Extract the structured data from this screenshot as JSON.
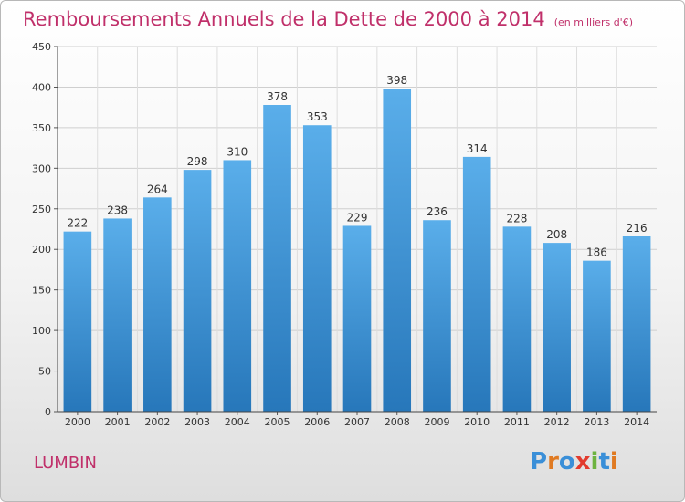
{
  "title": "Remboursements Annuels de la Dette de 2000 à 2014",
  "subtitle": "(en milliers d'€)",
  "commune": "LUMBIN",
  "logo": "Proxiti",
  "colors": {
    "title": "#c0306a",
    "bar_top": "#5aaeea",
    "bar_bottom": "#2777ba",
    "grid": "#cfcfcf"
  },
  "chart_data": {
    "type": "bar",
    "categories": [
      "2000",
      "2001",
      "2002",
      "2003",
      "2004",
      "2005",
      "2006",
      "2007",
      "2008",
      "2009",
      "2010",
      "2011",
      "2012",
      "2013",
      "2014"
    ],
    "values": [
      222,
      238,
      264,
      298,
      310,
      378,
      353,
      229,
      398,
      236,
      314,
      228,
      208,
      186,
      216
    ],
    "title": "Remboursements Annuels de la Dette de 2000 à 2014",
    "subtitle": "(en milliers d'€)",
    "xlabel": "",
    "ylabel": "",
    "ylim": [
      0,
      450
    ],
    "yticks": [
      0,
      50,
      100,
      150,
      200,
      250,
      300,
      350,
      400,
      450
    ],
    "grid": true,
    "legend": "none"
  }
}
